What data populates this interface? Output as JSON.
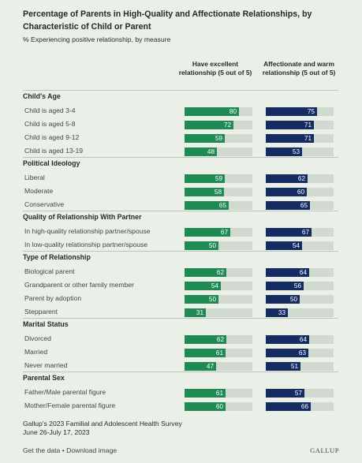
{
  "header": {
    "title": "Percentage of Parents in High-Quality and Affectionate Relationships, by Characteristic of Child or Parent",
    "subtitle": "% Experiencing positive relationship, by measure"
  },
  "columns": {
    "col1": "Have excellent relationship (5 out of 5)",
    "col2": "Affectionate and warm relationship (5 out of 5)"
  },
  "colors": {
    "col1": "#1f8a54",
    "col2": "#152c63",
    "track": "#d0dace"
  },
  "chart_data": {
    "type": "bar",
    "xlim": [
      0,
      100
    ],
    "series": [
      {
        "name": "Have excellent relationship (5 out of 5)"
      },
      {
        "name": "Affectionate and warm relationship (5 out of 5)"
      }
    ],
    "groups": [
      {
        "name": "Child's Age",
        "rows": [
          {
            "label": "Child is aged 3-4",
            "values": [
              80,
              75
            ]
          },
          {
            "label": "Child is aged 5-8",
            "values": [
              72,
              71
            ]
          },
          {
            "label": "Child is aged 9-12",
            "values": [
              59,
              71
            ]
          },
          {
            "label": "Child is aged 13-19",
            "values": [
              48,
              53
            ]
          }
        ]
      },
      {
        "name": "Political Ideology",
        "rows": [
          {
            "label": "Liberal",
            "values": [
              59,
              62
            ]
          },
          {
            "label": "Moderate",
            "values": [
              58,
              60
            ]
          },
          {
            "label": "Conservative",
            "values": [
              65,
              65
            ]
          }
        ]
      },
      {
        "name": "Quality of Relationship With Partner",
        "rows": [
          {
            "label": "In high-quality relationship partner/spouse",
            "values": [
              67,
              67
            ]
          },
          {
            "label": "In low-quality relationship partner/spouse",
            "values": [
              50,
              54
            ]
          }
        ]
      },
      {
        "name": "Type of Relationship",
        "rows": [
          {
            "label": "Biological parent",
            "values": [
              62,
              64
            ]
          },
          {
            "label": "Grandparent or other family member",
            "values": [
              54,
              56
            ]
          },
          {
            "label": "Parent by adoption",
            "values": [
              50,
              50
            ]
          },
          {
            "label": "Stepparent",
            "values": [
              31,
              33
            ]
          }
        ]
      },
      {
        "name": "Marital Status",
        "rows": [
          {
            "label": "Divorced",
            "values": [
              62,
              64
            ]
          },
          {
            "label": "Married",
            "values": [
              61,
              63
            ]
          },
          {
            "label": "Never married",
            "values": [
              47,
              51
            ]
          }
        ]
      },
      {
        "name": "Parental Sex",
        "rows": [
          {
            "label": "Father/Male parental figure",
            "values": [
              61,
              57
            ]
          },
          {
            "label": "Mother/Female parental figure",
            "values": [
              60,
              66
            ]
          }
        ]
      }
    ]
  },
  "source": {
    "line1": "Gallup's 2023 Familial and Adolescent Health Survey",
    "line2": "June 26-July 17, 2023"
  },
  "footer": {
    "get_data": "Get the data",
    "separator": " • ",
    "download": "Download image",
    "logo": "GALLUP"
  }
}
